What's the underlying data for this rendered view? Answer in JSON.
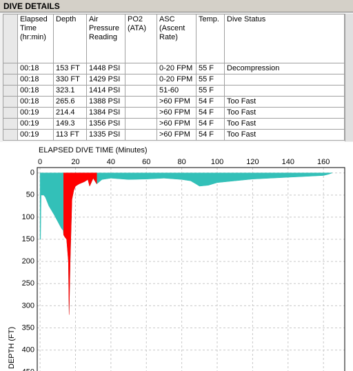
{
  "header": {
    "title": "DIVE DETAILS"
  },
  "table": {
    "header": [
      "Elapsed Time (hr:min)",
      "Depth",
      "Air Pressure Reading",
      "PO2 (ATA)",
      "ASC (Ascent Rate)",
      "Temp.",
      "Dive Status"
    ],
    "rows": [
      [
        "00:18",
        "153 FT",
        "1448 PSI",
        null,
        "0-20 FPM",
        "55 F",
        "Decompression"
      ],
      [
        "00:18",
        "330 FT",
        "1429 PSI",
        null,
        "0-20 FPM",
        "55 F",
        null
      ],
      [
        "00:18",
        "323.1",
        "1414 PSI",
        null,
        "51-60",
        "55 F",
        null
      ],
      [
        "00:18",
        "265.6",
        "1388 PSI",
        null,
        ">60 FPM",
        "54 F",
        "Too Fast"
      ],
      [
        "00:19",
        "214.4",
        "1384 PSI",
        null,
        ">60 FPM",
        "54 F",
        "Too Fast"
      ],
      [
        "00:19",
        "149.3",
        "1356 PSI",
        null,
        ">60 FPM",
        "54 F",
        "Too Fast"
      ],
      [
        "00:19",
        "113 FT",
        "1335 PSI",
        null,
        ">60 FPM",
        "54 F",
        "Too Fast"
      ]
    ]
  },
  "chart_data": {
    "type": "area",
    "xlabel": "ELAPSED DIVE TIME (Minutes)",
    "ylabel": "DEPTH (FT)",
    "x": [
      0,
      0.3,
      0.6,
      2,
      3,
      5,
      8,
      10,
      12,
      13,
      13.3,
      14,
      15,
      16,
      16.4,
      17,
      18,
      19,
      20,
      22,
      25,
      27,
      28,
      30,
      32,
      35,
      40,
      50,
      60,
      70,
      80,
      85,
      88,
      90,
      95,
      100,
      110,
      120,
      130,
      140,
      150,
      160,
      163,
      165
    ],
    "series": [
      {
        "color": "#33c0b8",
        "values": [
          150,
          150,
          50,
          50,
          55,
          75,
          95,
          110,
          125,
          130,
          140,
          145,
          150,
          200,
          320,
          200,
          60,
          40,
          30,
          25,
          20,
          15,
          30,
          12,
          25,
          15,
          12,
          15,
          14,
          12,
          15,
          18,
          25,
          30,
          28,
          22,
          18,
          14,
          12,
          10,
          8,
          6,
          3,
          0
        ]
      },
      {
        "color": "#ff0000",
        "values": [
          null,
          null,
          null,
          null,
          null,
          null,
          null,
          null,
          null,
          null,
          140,
          145,
          150,
          200,
          320,
          200,
          60,
          40,
          30,
          25,
          20,
          15,
          30,
          12,
          25,
          null,
          null,
          null,
          null,
          null,
          null,
          null,
          null,
          null,
          null,
          null,
          null,
          null,
          null,
          null,
          null,
          null,
          null,
          null
        ]
      }
    ],
    "xlim": [
      -1.6,
      172
    ],
    "ylim": [
      -12,
      452
    ],
    "xticks": [
      0,
      20,
      40,
      60,
      80,
      100,
      120,
      140,
      160
    ],
    "yticks": [
      0,
      50,
      100,
      150,
      200,
      250,
      300,
      350,
      400,
      450
    ],
    "y_reversed": true,
    "x_axis_top": true,
    "grid": true
  }
}
